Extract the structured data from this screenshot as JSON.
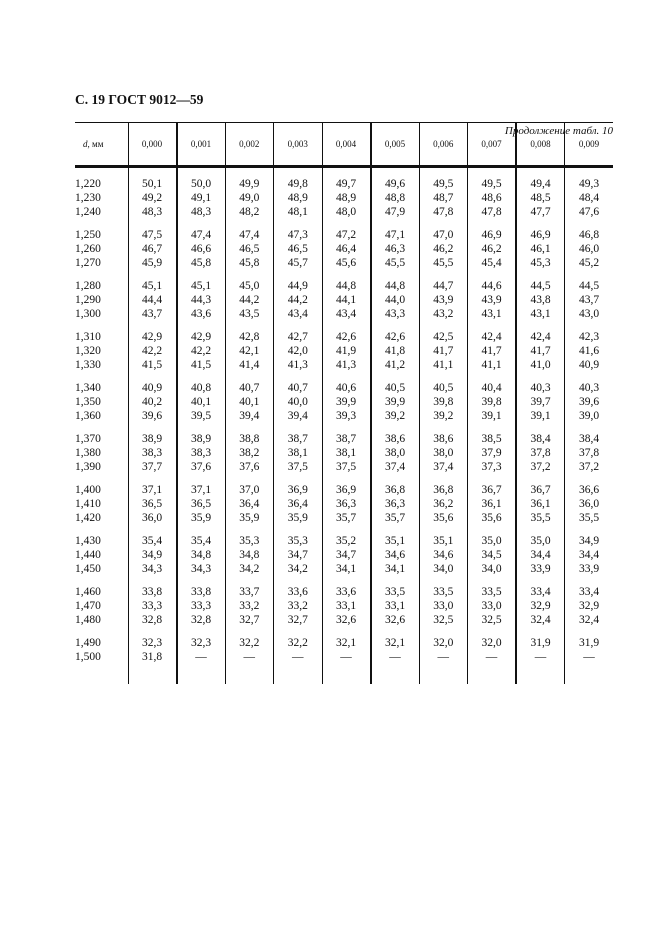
{
  "header": {
    "page_title": "С. 19 ГОСТ 9012—59",
    "continuation": "Продолжение табл. 10"
  },
  "table": {
    "d_header_italic": "d",
    "d_header_unit": ", мм",
    "columns": [
      "0,000",
      "0,001",
      "0,002",
      "0,003",
      "0,004",
      "0,005",
      "0,006",
      "0,007",
      "0,008",
      "0,009"
    ],
    "groups": [
      [
        [
          "1,220",
          "50,1",
          "50,0",
          "49,9",
          "49,8",
          "49,7",
          "49,6",
          "49,5",
          "49,5",
          "49,4",
          "49,3"
        ],
        [
          "1,230",
          "49,2",
          "49,1",
          "49,0",
          "48,9",
          "48,9",
          "48,8",
          "48,7",
          "48,6",
          "48,5",
          "48,4"
        ],
        [
          "1,240",
          "48,3",
          "48,3",
          "48,2",
          "48,1",
          "48,0",
          "47,9",
          "47,8",
          "47,8",
          "47,7",
          "47,6"
        ]
      ],
      [
        [
          "1,250",
          "47,5",
          "47,4",
          "47,4",
          "47,3",
          "47,2",
          "47,1",
          "47,0",
          "46,9",
          "46,9",
          "46,8"
        ],
        [
          "1,260",
          "46,7",
          "46,6",
          "46,5",
          "46,5",
          "46,4",
          "46,3",
          "46,2",
          "46,2",
          "46,1",
          "46,0"
        ],
        [
          "1,270",
          "45,9",
          "45,8",
          "45,8",
          "45,7",
          "45,6",
          "45,5",
          "45,5",
          "45,4",
          "45,3",
          "45,2"
        ]
      ],
      [
        [
          "1,280",
          "45,1",
          "45,1",
          "45,0",
          "44,9",
          "44,8",
          "44,8",
          "44,7",
          "44,6",
          "44,5",
          "44,5"
        ],
        [
          "1,290",
          "44,4",
          "44,3",
          "44,2",
          "44,2",
          "44,1",
          "44,0",
          "43,9",
          "43,9",
          "43,8",
          "43,7"
        ],
        [
          "1,300",
          "43,7",
          "43,6",
          "43,5",
          "43,4",
          "43,4",
          "43,3",
          "43,2",
          "43,1",
          "43,1",
          "43,0"
        ]
      ],
      [
        [
          "1,310",
          "42,9",
          "42,9",
          "42,8",
          "42,7",
          "42,6",
          "42,6",
          "42,5",
          "42,4",
          "42,4",
          "42,3"
        ],
        [
          "1,320",
          "42,2",
          "42,2",
          "42,1",
          "42,0",
          "41,9",
          "41,8",
          "41,7",
          "41,7",
          "41,7",
          "41,6"
        ],
        [
          "1,330",
          "41,5",
          "41,5",
          "41,4",
          "41,3",
          "41,3",
          "41,2",
          "41,1",
          "41,1",
          "41,0",
          "40,9"
        ]
      ],
      [
        [
          "1,340",
          "40,9",
          "40,8",
          "40,7",
          "40,7",
          "40,6",
          "40,5",
          "40,5",
          "40,4",
          "40,3",
          "40,3"
        ],
        [
          "1,350",
          "40,2",
          "40,1",
          "40,1",
          "40,0",
          "39,9",
          "39,9",
          "39,8",
          "39,8",
          "39,7",
          "39,6"
        ],
        [
          "1,360",
          "39,6",
          "39,5",
          "39,4",
          "39,4",
          "39,3",
          "39,2",
          "39,2",
          "39,1",
          "39,1",
          "39,0"
        ]
      ],
      [
        [
          "1,370",
          "38,9",
          "38,9",
          "38,8",
          "38,7",
          "38,7",
          "38,6",
          "38,6",
          "38,5",
          "38,4",
          "38,4"
        ],
        [
          "1,380",
          "38,3",
          "38,3",
          "38,2",
          "38,1",
          "38,1",
          "38,0",
          "38,0",
          "37,9",
          "37,8",
          "37,8"
        ],
        [
          "1,390",
          "37,7",
          "37,6",
          "37,6",
          "37,5",
          "37,5",
          "37,4",
          "37,4",
          "37,3",
          "37,2",
          "37,2"
        ]
      ],
      [
        [
          "1,400",
          "37,1",
          "37,1",
          "37,0",
          "36,9",
          "36,9",
          "36,8",
          "36,8",
          "36,7",
          "36,7",
          "36,6"
        ],
        [
          "1,410",
          "36,5",
          "36,5",
          "36,4",
          "36,4",
          "36,3",
          "36,3",
          "36,2",
          "36,1",
          "36,1",
          "36,0"
        ],
        [
          "1,420",
          "36,0",
          "35,9",
          "35,9",
          "35,9",
          "35,7",
          "35,7",
          "35,6",
          "35,6",
          "35,5",
          "35,5"
        ]
      ],
      [
        [
          "1,430",
          "35,4",
          "35,4",
          "35,3",
          "35,3",
          "35,2",
          "35,1",
          "35,1",
          "35,0",
          "35,0",
          "34,9"
        ],
        [
          "1,440",
          "34,9",
          "34,8",
          "34,8",
          "34,7",
          "34,7",
          "34,6",
          "34,6",
          "34,5",
          "34,4",
          "34,4"
        ],
        [
          "1,450",
          "34,3",
          "34,3",
          "34,2",
          "34,2",
          "34,1",
          "34,1",
          "34,0",
          "34,0",
          "33,9",
          "33,9"
        ]
      ],
      [
        [
          "1,460",
          "33,8",
          "33,8",
          "33,7",
          "33,6",
          "33,6",
          "33,5",
          "33,5",
          "33,5",
          "33,4",
          "33,4"
        ],
        [
          "1,470",
          "33,3",
          "33,3",
          "33,2",
          "33,2",
          "33,1",
          "33,1",
          "33,0",
          "33,0",
          "32,9",
          "32,9"
        ],
        [
          "1,480",
          "32,8",
          "32,8",
          "32,7",
          "32,7",
          "32,6",
          "32,6",
          "32,5",
          "32,5",
          "32,4",
          "32,4"
        ]
      ],
      [
        [
          "1,490",
          "32,3",
          "32,3",
          "32,2",
          "32,2",
          "32,1",
          "32,1",
          "32,0",
          "32,0",
          "31,9",
          "31,9"
        ],
        [
          "1,500",
          "31,8",
          "—",
          "—",
          "—",
          "—",
          "—",
          "—",
          "—",
          "—",
          "—"
        ]
      ]
    ]
  }
}
